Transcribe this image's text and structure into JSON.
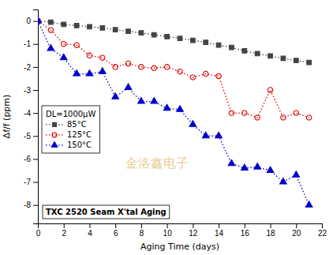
{
  "chart_data": {
    "type": "line",
    "xlabel": "Aging Time (days)",
    "ylabel": "Δf/f (ppm)",
    "xlim": [
      0,
      22
    ],
    "ylim": [
      -8.8,
      0.5
    ],
    "xticks": [
      0,
      2,
      4,
      6,
      8,
      10,
      12,
      14,
      16,
      18,
      20,
      22
    ],
    "yticks": [
      0,
      -1,
      -2,
      -3,
      -4,
      -5,
      -6,
      -7,
      -8
    ],
    "grid": false,
    "legend": "left",
    "legend_title": "DL=1000μW",
    "annotations": [
      {
        "text": "TXC 2520 Seam X'tal Aging"
      },
      {
        "text": "金洛鑫电子"
      }
    ],
    "x": [
      0,
      1,
      2,
      3,
      4,
      5,
      6,
      7,
      8,
      9,
      10,
      11,
      12,
      13,
      14,
      15,
      16,
      17,
      18,
      19,
      20,
      21
    ],
    "series": [
      {
        "name": "85°C",
        "color": "#444444",
        "marker": "square",
        "line_style": "dotted",
        "values": [
          0.0,
          -0.05,
          -0.15,
          -0.2,
          -0.25,
          -0.3,
          -0.38,
          -0.45,
          -0.52,
          -0.6,
          -0.68,
          -0.76,
          -0.84,
          -0.93,
          -1.05,
          -1.15,
          -1.3,
          -1.42,
          -1.52,
          -1.62,
          -1.72,
          -1.8
        ]
      },
      {
        "name": "125°C",
        "color": "#dd0000",
        "marker": "circle-open",
        "line_style": "dotted",
        "values": [
          0.0,
          -0.4,
          -1.0,
          -1.05,
          -1.5,
          -1.6,
          -2.0,
          -1.85,
          -2.0,
          -2.05,
          -2.0,
          -2.2,
          -2.45,
          -2.3,
          -2.4,
          -4.0,
          -4.0,
          -4.2,
          -3.0,
          -4.2,
          -4.0,
          -4.2
        ]
      },
      {
        "name": "150°C",
        "color": "#0000cc",
        "marker": "triangle",
        "line_style": "dotted",
        "values": [
          0.0,
          -1.2,
          -1.6,
          -2.3,
          -2.3,
          -2.2,
          -3.3,
          -2.9,
          -3.5,
          -3.5,
          -3.8,
          -3.85,
          -4.5,
          -5.0,
          -5.0,
          -6.2,
          -6.4,
          -6.35,
          -6.5,
          -7.0,
          -6.7,
          -8.0
        ]
      }
    ]
  }
}
